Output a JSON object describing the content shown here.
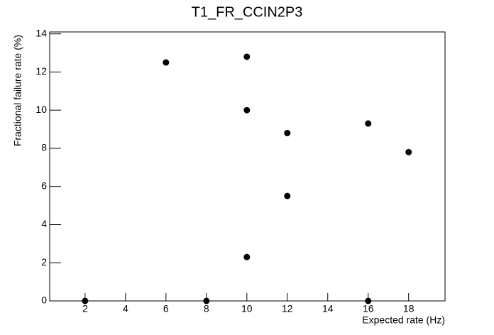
{
  "chart_data": {
    "type": "scatter",
    "title": "T1_FR_CCIN2P3",
    "x_label": "Expected rate (Hz)",
    "y_label": "Fractional failure rate (%)",
    "x": [
      2,
      6,
      8,
      10,
      10,
      10,
      12,
      12,
      16,
      16,
      18
    ],
    "values": [
      0,
      12.5,
      0,
      12.8,
      10,
      2.3,
      8.8,
      5.5,
      9.3,
      0,
      7.8
    ],
    "color": "#000000",
    "xlim": [
      0.25,
      19.8
    ],
    "xticks": [
      2,
      4,
      6,
      8,
      10,
      12,
      14,
      16,
      18
    ],
    "ylim": [
      0,
      14.1
    ],
    "yticks": [
      0,
      2,
      4,
      6,
      8,
      10,
      12,
      14
    ]
  }
}
